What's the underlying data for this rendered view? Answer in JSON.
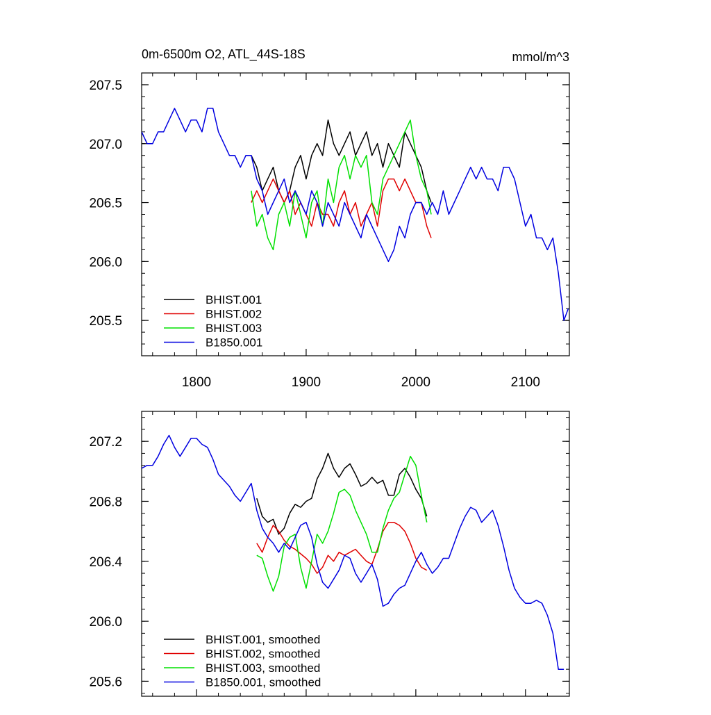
{
  "colors": {
    "black": "#000000",
    "red": "#e00000",
    "green": "#00e000",
    "blue": "#0000e0"
  },
  "chart_data": [
    {
      "type": "line",
      "title": "0m-6500m O2, ATL_44S-18S",
      "units": "mmol/m^3",
      "xlim": [
        1750,
        2140
      ],
      "ylim": [
        205.2,
        207.6
      ],
      "xticks": [
        1800,
        1900,
        2000,
        2100
      ],
      "yticks": [
        205.5,
        206.0,
        206.5,
        207.0,
        207.5
      ],
      "ytick_labels": [
        "205.5",
        "206.0",
        "206.5",
        "207.0",
        "207.5"
      ],
      "legend_position": "bottom-left",
      "series": [
        {
          "name": "BHIST.001",
          "color": "#000000",
          "x": [
            1850,
            1855,
            1860,
            1865,
            1870,
            1875,
            1880,
            1885,
            1890,
            1895,
            1900,
            1905,
            1910,
            1915,
            1920,
            1925,
            1930,
            1935,
            1940,
            1945,
            1950,
            1955,
            1960,
            1965,
            1970,
            1975,
            1980,
            1985,
            1990,
            1995,
            2000,
            2005,
            2010,
            2014
          ],
          "y": [
            206.9,
            206.8,
            206.6,
            206.7,
            206.8,
            206.6,
            206.5,
            206.6,
            206.8,
            206.9,
            206.7,
            206.9,
            207.0,
            206.9,
            207.2,
            207.0,
            206.9,
            207.0,
            207.1,
            206.9,
            207.0,
            207.1,
            206.9,
            207.0,
            206.8,
            207.0,
            206.9,
            206.8,
            207.1,
            207.0,
            206.9,
            206.8,
            206.6,
            206.5
          ]
        },
        {
          "name": "BHIST.002",
          "color": "#e00000",
          "x": [
            1850,
            1855,
            1860,
            1865,
            1870,
            1875,
            1880,
            1885,
            1890,
            1895,
            1900,
            1905,
            1910,
            1915,
            1920,
            1925,
            1930,
            1935,
            1940,
            1945,
            1950,
            1955,
            1960,
            1965,
            1970,
            1975,
            1980,
            1985,
            1990,
            1995,
            2000,
            2005,
            2010,
            2014
          ],
          "y": [
            206.5,
            206.6,
            206.5,
            206.6,
            206.7,
            206.6,
            206.5,
            206.6,
            206.4,
            206.5,
            206.4,
            206.3,
            206.5,
            206.4,
            206.4,
            206.3,
            206.5,
            206.6,
            206.4,
            206.5,
            206.3,
            206.4,
            206.5,
            206.3,
            206.6,
            206.7,
            206.7,
            206.6,
            206.7,
            206.6,
            206.5,
            206.5,
            206.3,
            206.2
          ]
        },
        {
          "name": "BHIST.003",
          "color": "#00e000",
          "x": [
            1850,
            1855,
            1860,
            1865,
            1870,
            1875,
            1880,
            1885,
            1890,
            1895,
            1900,
            1905,
            1910,
            1915,
            1920,
            1925,
            1930,
            1935,
            1940,
            1945,
            1950,
            1955,
            1960,
            1965,
            1970,
            1975,
            1980,
            1985,
            1990,
            1995,
            2000,
            2005,
            2010,
            2014
          ],
          "y": [
            206.6,
            206.3,
            206.4,
            206.2,
            206.1,
            206.4,
            206.5,
            206.3,
            206.6,
            206.4,
            206.2,
            206.5,
            206.6,
            206.3,
            206.7,
            206.5,
            206.8,
            206.9,
            206.7,
            206.9,
            206.8,
            206.9,
            206.5,
            206.4,
            206.7,
            206.8,
            206.9,
            207.0,
            207.1,
            207.2,
            206.9,
            206.7,
            206.6,
            206.4
          ]
        },
        {
          "name": "B1850.001",
          "color": "#0000e0",
          "x": [
            1750,
            1755,
            1760,
            1765,
            1770,
            1775,
            1780,
            1785,
            1790,
            1795,
            1800,
            1805,
            1810,
            1815,
            1820,
            1825,
            1830,
            1835,
            1840,
            1845,
            1850,
            1855,
            1860,
            1865,
            1870,
            1875,
            1880,
            1885,
            1890,
            1895,
            1900,
            1905,
            1910,
            1915,
            1920,
            1925,
            1930,
            1935,
            1940,
            1945,
            1950,
            1955,
            1960,
            1965,
            1970,
            1975,
            1980,
            1985,
            1990,
            1995,
            2000,
            2005,
            2010,
            2015,
            2020,
            2025,
            2030,
            2035,
            2040,
            2045,
            2050,
            2055,
            2060,
            2065,
            2070,
            2075,
            2080,
            2085,
            2090,
            2095,
            2100,
            2105,
            2110,
            2115,
            2120,
            2125,
            2130,
            2135,
            2139
          ],
          "y": [
            207.1,
            207.0,
            207.0,
            207.1,
            207.1,
            207.2,
            207.3,
            207.2,
            207.1,
            207.2,
            207.2,
            207.1,
            207.3,
            207.3,
            207.1,
            207.0,
            206.9,
            206.9,
            206.8,
            206.9,
            206.9,
            206.7,
            206.6,
            206.4,
            206.5,
            206.6,
            206.7,
            206.5,
            206.6,
            206.5,
            206.4,
            206.6,
            206.5,
            206.3,
            206.5,
            206.4,
            206.3,
            206.5,
            206.4,
            206.3,
            206.2,
            206.4,
            206.3,
            206.2,
            206.1,
            206.0,
            206.1,
            206.3,
            206.2,
            206.4,
            206.5,
            206.5,
            206.4,
            206.5,
            206.4,
            206.6,
            206.4,
            206.5,
            206.6,
            206.7,
            206.8,
            206.7,
            206.8,
            206.7,
            206.7,
            206.6,
            206.8,
            206.8,
            206.7,
            206.5,
            206.3,
            206.4,
            206.2,
            206.2,
            206.1,
            206.2,
            205.9,
            205.5,
            205.6
          ]
        }
      ]
    },
    {
      "type": "line",
      "title": "",
      "xlim": [
        1750,
        2140
      ],
      "ylim": [
        205.5,
        207.4
      ],
      "xticks": [
        1800,
        1900,
        2000,
        2100
      ],
      "yticks": [
        205.6,
        206.0,
        206.4,
        206.8,
        207.2
      ],
      "ytick_labels": [
        "205.6",
        "206.0",
        "206.4",
        "206.8",
        "207.2"
      ],
      "legend_position": "bottom-left",
      "series": [
        {
          "name": "BHIST.001, smoothed",
          "color": "#000000",
          "x": [
            1855,
            1860,
            1865,
            1870,
            1875,
            1880,
            1885,
            1890,
            1895,
            1900,
            1905,
            1910,
            1915,
            1920,
            1925,
            1930,
            1935,
            1940,
            1945,
            1950,
            1955,
            1960,
            1965,
            1970,
            1975,
            1980,
            1985,
            1990,
            1995,
            2000,
            2005,
            2010
          ],
          "y": [
            206.82,
            206.7,
            206.66,
            206.68,
            206.58,
            206.62,
            206.72,
            206.78,
            206.76,
            206.8,
            206.82,
            206.95,
            207.02,
            207.12,
            207.02,
            206.96,
            207.02,
            207.05,
            206.98,
            206.9,
            206.92,
            206.96,
            206.92,
            206.94,
            206.84,
            206.84,
            206.98,
            207.02,
            206.96,
            206.88,
            206.82,
            206.7
          ]
        },
        {
          "name": "BHIST.002, smoothed",
          "color": "#e00000",
          "x": [
            1855,
            1860,
            1865,
            1870,
            1875,
            1880,
            1885,
            1890,
            1895,
            1900,
            1905,
            1910,
            1915,
            1920,
            1925,
            1930,
            1935,
            1940,
            1945,
            1950,
            1955,
            1960,
            1965,
            1970,
            1975,
            1980,
            1985,
            1990,
            1995,
            2000,
            2005,
            2010
          ],
          "y": [
            206.52,
            206.46,
            206.56,
            206.64,
            206.6,
            206.54,
            206.5,
            206.48,
            206.45,
            206.42,
            206.38,
            206.32,
            206.36,
            206.44,
            206.4,
            206.46,
            206.44,
            206.46,
            206.48,
            206.44,
            206.4,
            206.38,
            206.48,
            206.6,
            206.66,
            206.66,
            206.64,
            206.6,
            206.52,
            206.42,
            206.36,
            206.34
          ]
        },
        {
          "name": "BHIST.003, smoothed",
          "color": "#00e000",
          "x": [
            1855,
            1860,
            1865,
            1870,
            1875,
            1880,
            1885,
            1890,
            1895,
            1900,
            1905,
            1910,
            1915,
            1920,
            1925,
            1930,
            1935,
            1940,
            1945,
            1950,
            1955,
            1960,
            1965,
            1970,
            1975,
            1980,
            1985,
            1990,
            1995,
            2000,
            2005,
            2010
          ],
          "y": [
            206.44,
            206.42,
            206.3,
            206.2,
            206.3,
            206.5,
            206.56,
            206.58,
            206.36,
            206.22,
            206.4,
            206.58,
            206.52,
            206.6,
            206.72,
            206.86,
            206.88,
            206.84,
            206.74,
            206.66,
            206.58,
            206.46,
            206.46,
            206.62,
            206.74,
            206.82,
            206.86,
            206.98,
            207.1,
            207.04,
            206.84,
            206.66
          ]
        },
        {
          "name": "B1850.001, smoothed",
          "color": "#0000e0",
          "x": [
            1750,
            1755,
            1760,
            1765,
            1770,
            1775,
            1780,
            1785,
            1790,
            1795,
            1800,
            1805,
            1810,
            1815,
            1820,
            1825,
            1830,
            1835,
            1840,
            1845,
            1850,
            1855,
            1860,
            1865,
            1870,
            1875,
            1880,
            1885,
            1890,
            1895,
            1900,
            1905,
            1910,
            1915,
            1920,
            1925,
            1930,
            1935,
            1940,
            1945,
            1950,
            1955,
            1960,
            1965,
            1970,
            1975,
            1980,
            1985,
            1990,
            1995,
            2000,
            2005,
            2010,
            2015,
            2020,
            2025,
            2030,
            2035,
            2040,
            2045,
            2050,
            2055,
            2060,
            2065,
            2070,
            2075,
            2080,
            2085,
            2090,
            2095,
            2100,
            2105,
            2110,
            2115,
            2120,
            2125,
            2130,
            2135
          ],
          "y": [
            207.02,
            207.04,
            207.04,
            207.1,
            207.18,
            207.24,
            207.16,
            207.1,
            207.16,
            207.22,
            207.22,
            207.18,
            207.16,
            207.08,
            206.98,
            206.94,
            206.9,
            206.84,
            206.8,
            206.86,
            206.92,
            206.74,
            206.62,
            206.56,
            206.52,
            206.46,
            206.52,
            206.48,
            206.56,
            206.64,
            206.66,
            206.56,
            206.38,
            206.26,
            206.22,
            206.28,
            206.34,
            206.44,
            206.42,
            206.32,
            206.26,
            206.32,
            206.38,
            206.28,
            206.1,
            206.12,
            206.18,
            206.22,
            206.24,
            206.32,
            206.4,
            206.46,
            206.38,
            206.32,
            206.36,
            206.42,
            206.42,
            206.52,
            206.62,
            206.7,
            206.76,
            206.74,
            206.66,
            206.7,
            206.74,
            206.64,
            206.5,
            206.34,
            206.22,
            206.16,
            206.12,
            206.12,
            206.14,
            206.12,
            206.04,
            205.92,
            205.68,
            205.68
          ]
        }
      ]
    }
  ]
}
